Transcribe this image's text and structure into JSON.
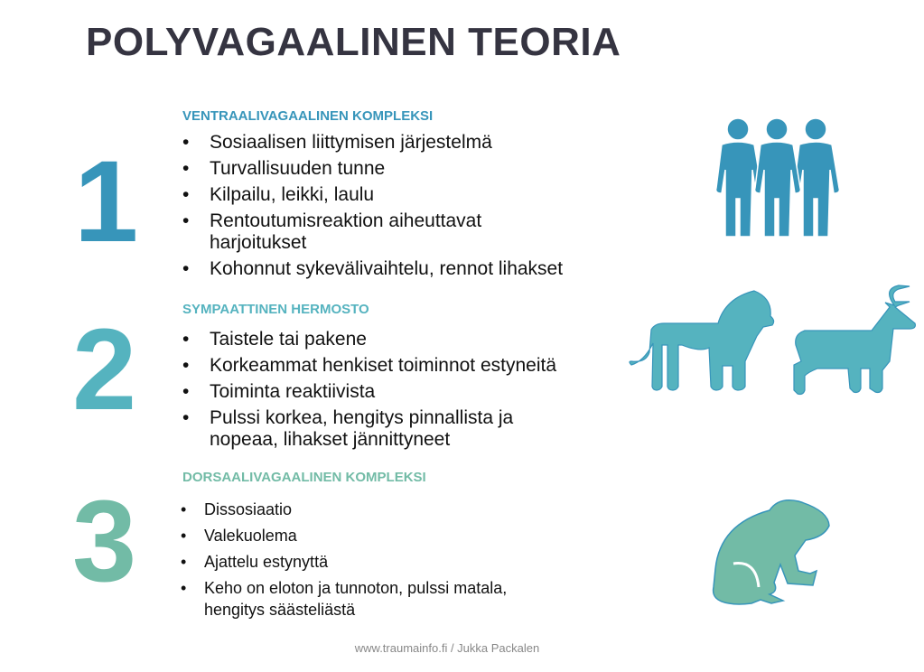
{
  "title": "POLYVAGAALINEN TEORIA",
  "sections": [
    {
      "number": "1",
      "heading": "VENTRAALIVAGAALINEN KOMPLEKSI",
      "color": "#3795BA",
      "icon": "people-icon",
      "items": [
        "Sosiaalisen liittymisen järjestelmä",
        "Turvallisuuden tunne",
        "Kilpailu, leikki, laulu",
        "Rentoutumisreaktion aiheuttavat harjoitukset",
        "Kohonnut sykevälivaihtelu, rennot lihakset"
      ]
    },
    {
      "number": "2",
      "heading": "SYMPAATTINEN HERMOSTO",
      "color": "#55B3BF",
      "icon": "lion-antelope-icon",
      "items": [
        "Taistele tai pakene",
        "Korkeammat henkiset toiminnot estyneitä",
        "Toiminta reaktiivista",
        "Pulssi korkea, hengitys pinnallista ja nopeaa, lihakset jännittyneet"
      ]
    },
    {
      "number": "3",
      "heading": "DORSAALIVAGAALINEN KOMPLEKSI",
      "color": "#72BBA6",
      "icon": "frog-icon",
      "items": [
        "Dissosiaatio",
        "Valekuolema",
        "Ajattelu estynyttä",
        "Keho on eloton ja tunnoton, pulssi matala, hengitys säästeliästä"
      ]
    }
  ],
  "footer": "www.traumainfo.fi / Jukka Packalen"
}
